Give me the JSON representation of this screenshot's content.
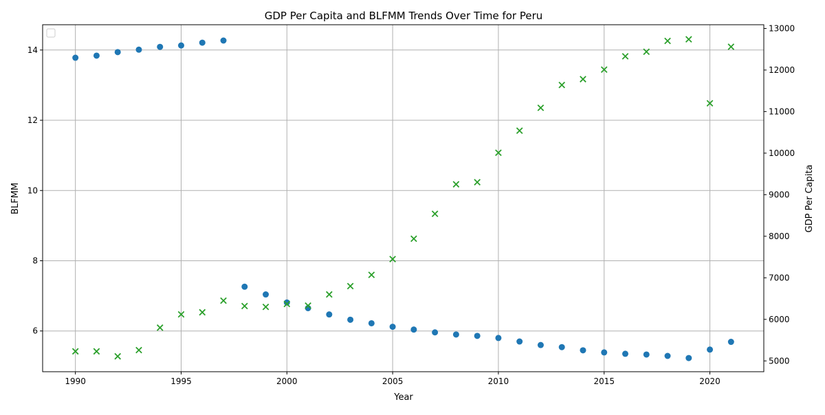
{
  "chart_data": {
    "type": "scatter",
    "title": "GDP Per Capita and BLFMM Trends Over Time for Peru",
    "xlabel": "Year",
    "ylabel_left": "BLFMM",
    "ylabel_right": "GDP Per Capita",
    "xlim": [
      1988.45,
      2022.55
    ],
    "ylim_left": [
      4.84,
      14.72
    ],
    "ylim_right": [
      4740,
      13090
    ],
    "x_ticks": [
      1990,
      1995,
      2000,
      2005,
      2010,
      2015,
      2020
    ],
    "y_ticks_left": [
      6,
      8,
      10,
      12,
      14
    ],
    "y_ticks_right": [
      5000,
      6000,
      7000,
      8000,
      9000,
      10000,
      11000,
      12000,
      13000
    ],
    "grid": true,
    "legend": "top-left",
    "colors": {
      "blfmm": "#1f77b4",
      "gdp": "#2ca02c",
      "left_label": "#1f77b4",
      "right_label": "#2ca02c"
    },
    "x": [
      1990,
      1991,
      1992,
      1993,
      1994,
      1995,
      1996,
      1997,
      1998,
      1999,
      2000,
      2001,
      2002,
      2003,
      2004,
      2005,
      2006,
      2007,
      2008,
      2009,
      2010,
      2011,
      2012,
      2013,
      2014,
      2015,
      2016,
      2017,
      2018,
      2019,
      2020,
      2021
    ],
    "series": [
      {
        "key": "blfmm",
        "axis": "left",
        "marker": "circle",
        "values": [
          13.78,
          13.84,
          13.94,
          14.01,
          14.09,
          14.13,
          14.21,
          14.27,
          7.26,
          7.04,
          6.81,
          6.65,
          6.47,
          6.32,
          6.22,
          6.12,
          6.04,
          5.96,
          5.9,
          5.86,
          5.8,
          5.7,
          5.6,
          5.54,
          5.45,
          5.39,
          5.35,
          5.33,
          5.29,
          5.23,
          5.47,
          5.69
        ]
      },
      {
        "key": "gdp",
        "axis": "right",
        "marker": "x",
        "values": [
          5230,
          5230,
          5110,
          5260,
          5800,
          6120,
          6170,
          6450,
          6320,
          6300,
          6370,
          6330,
          6600,
          6800,
          7070,
          7450,
          7940,
          8540,
          9250,
          9300,
          10010,
          10540,
          11090,
          11640,
          11780,
          12010,
          12330,
          12440,
          12700,
          12740,
          11200,
          12560
        ]
      }
    ]
  }
}
